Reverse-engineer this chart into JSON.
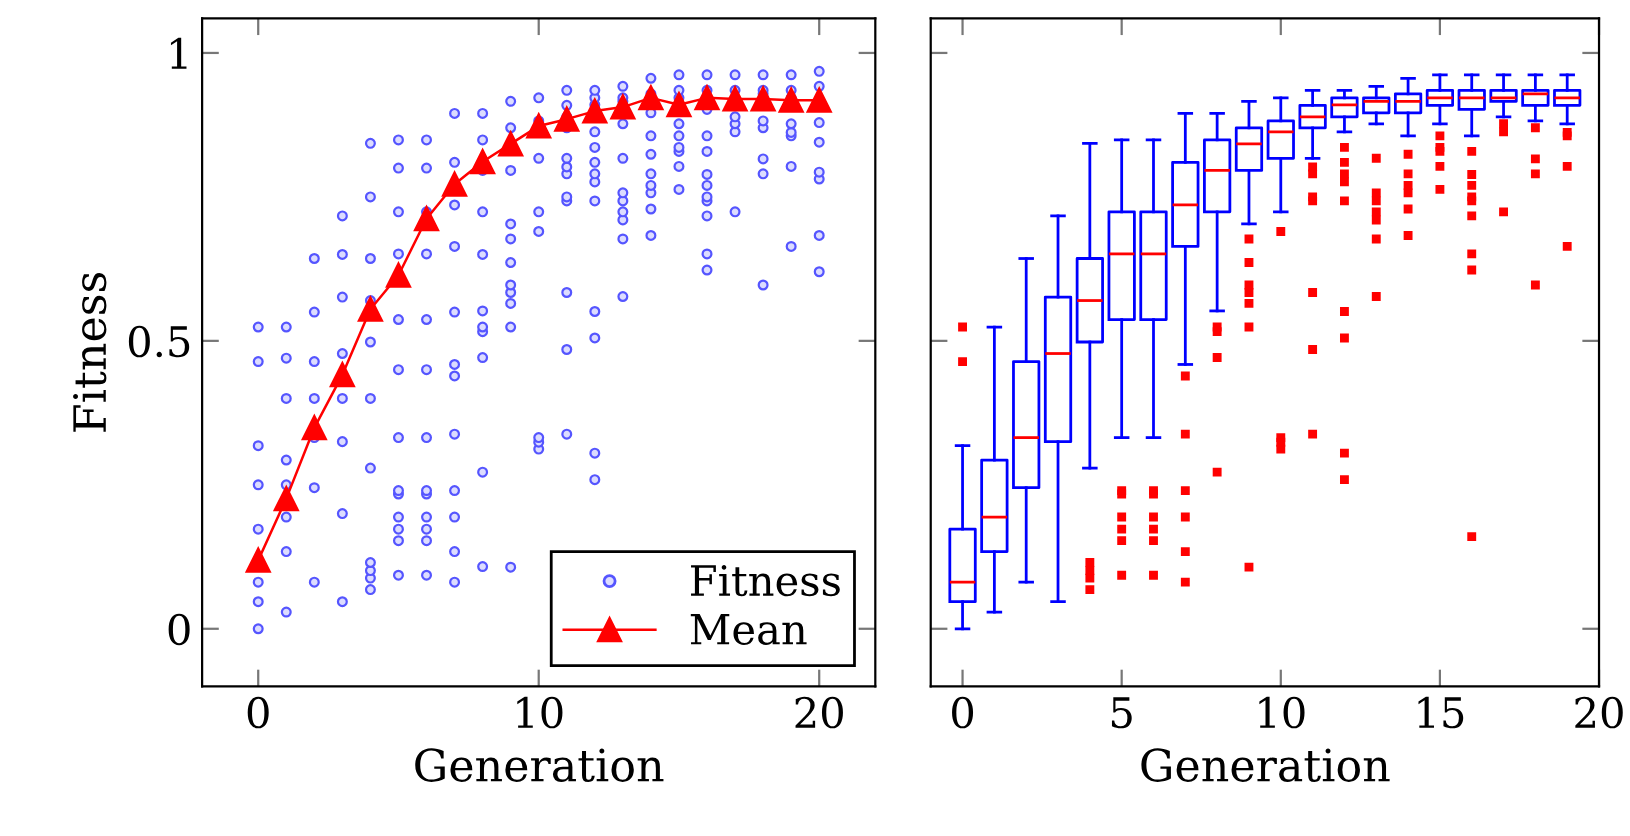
{
  "chart_data": [
    {
      "type": "scatter",
      "xlabel": "Generation",
      "ylabel": "Fitness",
      "xlim": [
        -2,
        22
      ],
      "ylim": [
        -0.1,
        1.06
      ],
      "xticks": [
        0,
        10,
        20
      ],
      "yticks": [
        0,
        0.5,
        1
      ],
      "legend": "bottom right",
      "series": [
        {
          "name": "Fitness",
          "type": "scatter",
          "marker": "circle",
          "color": "#5555ff",
          "x": [
            0,
            0,
            0,
            0,
            0,
            0,
            0,
            0,
            1,
            1,
            1,
            1,
            1,
            1,
            1,
            1,
            2,
            2,
            2,
            2,
            2,
            2,
            2,
            3,
            3,
            3,
            3,
            3,
            3,
            3,
            3,
            4,
            4,
            4,
            4,
            4,
            4,
            4,
            4,
            4,
            4,
            4,
            5,
            5,
            5,
            5,
            5,
            5,
            5,
            5,
            5,
            5,
            5,
            5,
            5,
            6,
            6,
            6,
            6,
            6,
            6,
            6,
            6,
            6,
            6,
            6,
            6,
            6,
            7,
            7,
            7,
            7,
            7,
            7,
            7,
            7,
            7,
            7,
            7,
            7,
            8,
            8,
            8,
            8,
            8,
            8,
            8,
            8,
            8,
            8,
            8,
            9,
            9,
            9,
            9,
            9,
            9,
            9,
            9,
            9,
            9,
            9,
            10,
            10,
            10,
            10,
            10,
            10,
            10,
            10,
            11,
            11,
            11,
            11,
            11,
            11,
            11,
            11,
            11,
            11,
            11,
            11,
            12,
            12,
            12,
            12,
            12,
            12,
            12,
            12,
            12,
            12,
            12,
            12,
            12,
            13,
            13,
            13,
            13,
            13,
            13,
            13,
            13,
            13,
            13,
            13,
            14,
            14,
            14,
            14,
            14,
            14,
            14,
            14,
            14,
            14,
            15,
            15,
            15,
            15,
            15,
            15,
            15,
            15,
            15,
            16,
            16,
            16,
            16,
            16,
            16,
            16,
            16,
            16,
            16,
            16,
            16,
            17,
            17,
            17,
            17,
            17,
            17,
            18,
            18,
            18,
            18,
            18,
            18,
            18,
            18,
            19,
            19,
            19,
            19,
            19,
            19,
            19,
            19,
            20,
            20,
            20,
            20,
            20,
            20,
            20,
            20
          ],
          "values": [
            0,
            0.047,
            0.081,
            0.173,
            0.25,
            0.318,
            0.464,
            0.524,
            0.029,
            0.134,
            0.194,
            0.25,
            0.293,
            0.4,
            0.47,
            0.524,
            0.081,
            0.245,
            0.332,
            0.4,
            0.464,
            0.55,
            0.643,
            0.047,
            0.2,
            0.325,
            0.4,
            0.478,
            0.576,
            0.65,
            0.717,
            0.068,
            0.088,
            0.101,
            0.115,
            0.279,
            0.4,
            0.498,
            0.57,
            0.643,
            0.75,
            0.843,
            0.093,
            0.153,
            0.173,
            0.194,
            0.234,
            0.24,
            0.332,
            0.45,
            0.537,
            0.651,
            0.724,
            0.8,
            0.849,
            0.093,
            0.153,
            0.173,
            0.194,
            0.234,
            0.24,
            0.332,
            0.45,
            0.537,
            0.651,
            0.724,
            0.8,
            0.849,
            0.081,
            0.134,
            0.194,
            0.24,
            0.338,
            0.439,
            0.459,
            0.55,
            0.664,
            0.736,
            0.81,
            0.895,
            0.108,
            0.272,
            0.471,
            0.516,
            0.524,
            0.552,
            0.65,
            0.724,
            0.796,
            0.849,
            0.895,
            0.107,
            0.524,
            0.565,
            0.584,
            0.597,
            0.636,
            0.677,
            0.703,
            0.796,
            0.87,
            0.916,
            0.312,
            0.324,
            0.332,
            0.69,
            0.724,
            0.817,
            0.882,
            0.922,
            0.338,
            0.485,
            0.584,
            0.743,
            0.75,
            0.79,
            0.802,
            0.817,
            0.87,
            0.889,
            0.909,
            0.935,
            0.259,
            0.305,
            0.505,
            0.551,
            0.743,
            0.776,
            0.79,
            0.81,
            0.836,
            0.863,
            0.91,
            0.922,
            0.935,
            0.577,
            0.677,
            0.71,
            0.724,
            0.743,
            0.757,
            0.817,
            0.877,
            0.916,
            0.922,
            0.942,
            0.683,
            0.729,
            0.757,
            0.77,
            0.79,
            0.824,
            0.856,
            0.896,
            0.929,
            0.956,
            0.763,
            0.803,
            0.829,
            0.836,
            0.856,
            0.877,
            0.922,
            0.935,
            0.962,
            0.623,
            0.651,
            0.717,
            0.743,
            0.75,
            0.77,
            0.789,
            0.829,
            0.856,
            0.902,
            0.935,
            0.962,
            0.724,
            0.863,
            0.877,
            0.889,
            0.935,
            0.962,
            0.597,
            0.79,
            0.816,
            0.87,
            0.882,
            0.929,
            0.935,
            0.962,
            0.664,
            0.803,
            0.856,
            0.862,
            0.877,
            0.922,
            0.935,
            0.962,
            0.62,
            0.683,
            0.781,
            0.793,
            0.845,
            0.879,
            0.942,
            0.968
          ]
        },
        {
          "name": "Mean",
          "type": "line",
          "marker": "triangle",
          "color": "#ff0000",
          "x": [
            0,
            1,
            2,
            3,
            4,
            5,
            6,
            7,
            8,
            9,
            10,
            11,
            12,
            13,
            14,
            15,
            16,
            17,
            18,
            19,
            20
          ],
          "values": [
            0.119,
            0.226,
            0.349,
            0.441,
            0.555,
            0.614,
            0.712,
            0.772,
            0.811,
            0.842,
            0.873,
            0.885,
            0.899,
            0.906,
            0.922,
            0.91,
            0.922,
            0.92,
            0.92,
            0.918,
            0.918
          ]
        }
      ]
    },
    {
      "type": "box",
      "xlabel": "Generation",
      "xlim": [
        -1,
        20
      ],
      "ylim": [
        -0.1,
        1.06
      ],
      "xticks": [
        0,
        5,
        10,
        15,
        20
      ],
      "yticks": [
        0,
        0.5,
        1
      ],
      "tick_labels": "x",
      "series": [
        {
          "color": "#0000ff",
          "x": [
            0,
            1,
            2,
            3,
            4,
            5,
            6,
            7,
            8,
            9,
            10,
            11,
            12,
            13,
            14,
            15,
            16,
            17,
            18,
            19
          ],
          "boxes": [
            {
              "low": 0,
              "q1": 0.047,
              "median": 0.081,
              "q3": 0.173,
              "high": 0.318,
              "outliers": [
                0.464,
                0.524
              ]
            },
            {
              "low": 0.029,
              "q1": 0.134,
              "median": 0.194,
              "q3": 0.293,
              "high": 0.524
            },
            {
              "low": 0.081,
              "q1": 0.245,
              "median": 0.332,
              "q3": 0.464,
              "high": 0.643
            },
            {
              "low": 0.047,
              "q1": 0.325,
              "median": 0.478,
              "q3": 0.576,
              "high": 0.717
            },
            {
              "low": 0.279,
              "q1": 0.498,
              "median": 0.57,
              "q3": 0.643,
              "high": 0.843,
              "outliers": [
                0.115,
                0.101,
                0.088,
                0.068
              ]
            },
            {
              "low": 0.332,
              "q1": 0.537,
              "median": 0.651,
              "q3": 0.724,
              "high": 0.849,
              "outliers": [
                0.24,
                0.234,
                0.194,
                0.173,
                0.153,
                0.093
              ]
            },
            {
              "low": 0.332,
              "q1": 0.537,
              "median": 0.651,
              "q3": 0.724,
              "high": 0.849,
              "outliers": [
                0.24,
                0.234,
                0.194,
                0.173,
                0.153,
                0.093
              ]
            },
            {
              "low": 0.459,
              "q1": 0.664,
              "median": 0.736,
              "q3": 0.81,
              "high": 0.895,
              "outliers": [
                0.439,
                0.338,
                0.24,
                0.194,
                0.134,
                0.081
              ]
            },
            {
              "low": 0.552,
              "q1": 0.724,
              "median": 0.796,
              "q3": 0.849,
              "high": 0.895,
              "outliers": [
                0.524,
                0.516,
                0.471,
                0.272
              ]
            },
            {
              "low": 0.703,
              "q1": 0.796,
              "median": 0.842,
              "q3": 0.87,
              "high": 0.916,
              "outliers": [
                0.677,
                0.636,
                0.597,
                0.584,
                0.565,
                0.524,
                0.107
              ]
            },
            {
              "low": 0.724,
              "q1": 0.817,
              "median": 0.863,
              "q3": 0.882,
              "high": 0.922,
              "outliers": [
                0.69,
                0.332,
                0.324,
                0.312
              ]
            },
            {
              "low": 0.817,
              "q1": 0.87,
              "median": 0.889,
              "q3": 0.909,
              "high": 0.935,
              "outliers": [
                0.802,
                0.79,
                0.75,
                0.743,
                0.584,
                0.485,
                0.338
              ]
            },
            {
              "low": 0.863,
              "q1": 0.889,
              "median": 0.91,
              "q3": 0.922,
              "high": 0.935,
              "outliers": [
                0.836,
                0.81,
                0.79,
                0.776,
                0.743,
                0.551,
                0.505,
                0.305,
                0.259
              ]
            },
            {
              "low": 0.877,
              "q1": 0.896,
              "median": 0.916,
              "q3": 0.922,
              "high": 0.942,
              "outliers": [
                0.817,
                0.757,
                0.743,
                0.724,
                0.71,
                0.677,
                0.577
              ]
            },
            {
              "low": 0.856,
              "q1": 0.896,
              "median": 0.916,
              "q3": 0.929,
              "high": 0.956,
              "outliers": [
                0.824,
                0.79,
                0.77,
                0.757,
                0.729,
                0.683
              ]
            },
            {
              "low": 0.877,
              "q1": 0.909,
              "median": 0.922,
              "q3": 0.935,
              "high": 0.962,
              "outliers": [
                0.856,
                0.836,
                0.829,
                0.803,
                0.763
              ]
            },
            {
              "low": 0.856,
              "q1": 0.902,
              "median": 0.922,
              "q3": 0.935,
              "high": 0.962,
              "outliers": [
                0.829,
                0.789,
                0.77,
                0.75,
                0.743,
                0.717,
                0.651,
                0.623,
                0.16
              ]
            },
            {
              "low": 0.889,
              "q1": 0.916,
              "median": 0.922,
              "q3": 0.935,
              "high": 0.962,
              "outliers": [
                0.877,
                0.863,
                0.724
              ]
            },
            {
              "low": 0.882,
              "q1": 0.909,
              "median": 0.929,
              "q3": 0.935,
              "high": 0.962,
              "outliers": [
                0.87,
                0.816,
                0.79,
                0.597
              ]
            },
            {
              "low": 0.877,
              "q1": 0.909,
              "median": 0.922,
              "q3": 0.935,
              "high": 0.962,
              "outliers": [
                0.862,
                0.856,
                0.803,
                0.664
              ]
            }
          ]
        }
      ]
    }
  ]
}
